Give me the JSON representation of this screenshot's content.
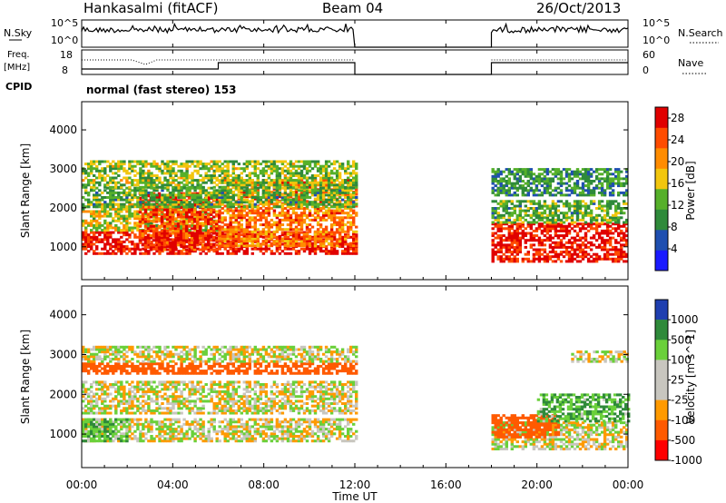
{
  "header": {
    "station": "Hankasalmi (fitACF)",
    "beam": "Beam 04",
    "date": "26/Oct/2013"
  },
  "side_labels": {
    "nsky": "N.Sky",
    "freq_line1": "Freq.",
    "freq_line2": "[MHz]",
    "cpid": "CPID",
    "nsearch": "N.Search",
    "nave": "Nave",
    "nsky_top": "10^5",
    "nsky_bottom": "10^0",
    "freq_top": "18",
    "freq_bottom": "8",
    "nave_top": "60",
    "nave_bottom": "0",
    "nsearch_top": "10^5",
    "nsearch_bottom": "10^0"
  },
  "cpid_text": "normal (fast stereo) 153",
  "colors": {
    "power_scale": [
      "#1a1aff",
      "#1f4fb0",
      "#2f8a3a",
      "#56b02a",
      "#f2c60e",
      "#ff8c00",
      "#ff4c00",
      "#e00000"
    ],
    "velocity_scale": [
      "#ff0000",
      "#ff5a00",
      "#ff9a00",
      "#c8c6bf",
      "#c8c6bf",
      "#6ad03a",
      "#2f8a3a",
      "#1f3fb0"
    ],
    "ground_scatter": "#c8c6bf"
  },
  "chart_data": [
    {
      "type": "heatmap",
      "title": "Power",
      "ylabel": "Slant Range [km]",
      "xlabel": "Time UT",
      "x_ticks": [
        "00:00",
        "04:00",
        "08:00",
        "12:00",
        "16:00",
        "20:00",
        "00:00"
      ],
      "x_range_hours": [
        0,
        24
      ],
      "y_ticks": [
        1000,
        2000,
        3000,
        4000
      ],
      "y_range_km": [
        180,
        4700
      ],
      "data_gaps_hours": [
        [
          12,
          18
        ]
      ],
      "colorbar": {
        "label": "Power [dB]",
        "unit": "dB",
        "ticks": [
          4,
          8,
          12,
          16,
          20,
          24,
          28
        ],
        "range": [
          0,
          30
        ]
      },
      "regions": [
        {
          "t": [
            0,
            12
          ],
          "range_km": [
            800,
            1400
          ],
          "level": 28
        },
        {
          "t": [
            0,
            6
          ],
          "range_km": [
            1400,
            2100
          ],
          "level": 16
        },
        {
          "t": [
            2.5,
            6
          ],
          "range_km": [
            900,
            2400
          ],
          "level": 26
        },
        {
          "t": [
            6,
            12
          ],
          "range_km": [
            1000,
            2700
          ],
          "level": 22
        },
        {
          "t": [
            0,
            12
          ],
          "range_km": [
            2000,
            2500
          ],
          "level": 12
        },
        {
          "t": [
            0,
            12
          ],
          "range_km": [
            2500,
            3200
          ],
          "level": 14
        },
        {
          "t": [
            18,
            24
          ],
          "range_km": [
            600,
            1600
          ],
          "level": 28
        },
        {
          "t": [
            18,
            24
          ],
          "range_km": [
            1600,
            2200
          ],
          "level": 12
        },
        {
          "t": [
            18,
            24
          ],
          "range_km": [
            2300,
            3000
          ],
          "level": 10
        }
      ]
    },
    {
      "type": "heatmap",
      "title": "Velocity",
      "ylabel": "Slant Range [km]",
      "xlabel": "Time UT",
      "x_ticks": [
        "00:00",
        "04:00",
        "08:00",
        "12:00",
        "16:00",
        "20:00",
        "00:00"
      ],
      "x_range_hours": [
        0,
        24
      ],
      "y_ticks": [
        1000,
        2000,
        3000,
        4000
      ],
      "y_range_km": [
        180,
        4700
      ],
      "data_gaps_hours": [
        [
          12,
          18
        ]
      ],
      "colorbar": {
        "label": "Velocity [m s^-1]",
        "unit": "m s^-1",
        "ticks": [
          1000,
          500,
          100,
          25,
          -25,
          -100,
          -500,
          -1000
        ]
      },
      "regions": [
        {
          "t": [
            0,
            12
          ],
          "range_km": [
            800,
            1400
          ],
          "velocity": 0,
          "note": "ground scatter"
        },
        {
          "t": [
            0,
            2
          ],
          "range_km": [
            800,
            1400
          ],
          "velocity": 80
        },
        {
          "t": [
            0,
            12
          ],
          "range_km": [
            1500,
            2300
          ],
          "velocity": 0
        },
        {
          "t": [
            0,
            12
          ],
          "range_km": [
            2500,
            2800
          ],
          "velocity": -300
        },
        {
          "t": [
            0,
            12
          ],
          "range_km": [
            2800,
            3200
          ],
          "velocity": 0
        },
        {
          "t": [
            18,
            24
          ],
          "range_km": [
            600,
            1300
          ],
          "velocity": 0
        },
        {
          "t": [
            18,
            21
          ],
          "range_km": [
            900,
            1500
          ],
          "velocity": -400
        },
        {
          "t": [
            20,
            24
          ],
          "range_km": [
            1300,
            2000
          ],
          "velocity": 100
        },
        {
          "t": [
            21.5,
            24
          ],
          "range_km": [
            2800,
            3100
          ],
          "velocity": 0
        }
      ]
    }
  ]
}
